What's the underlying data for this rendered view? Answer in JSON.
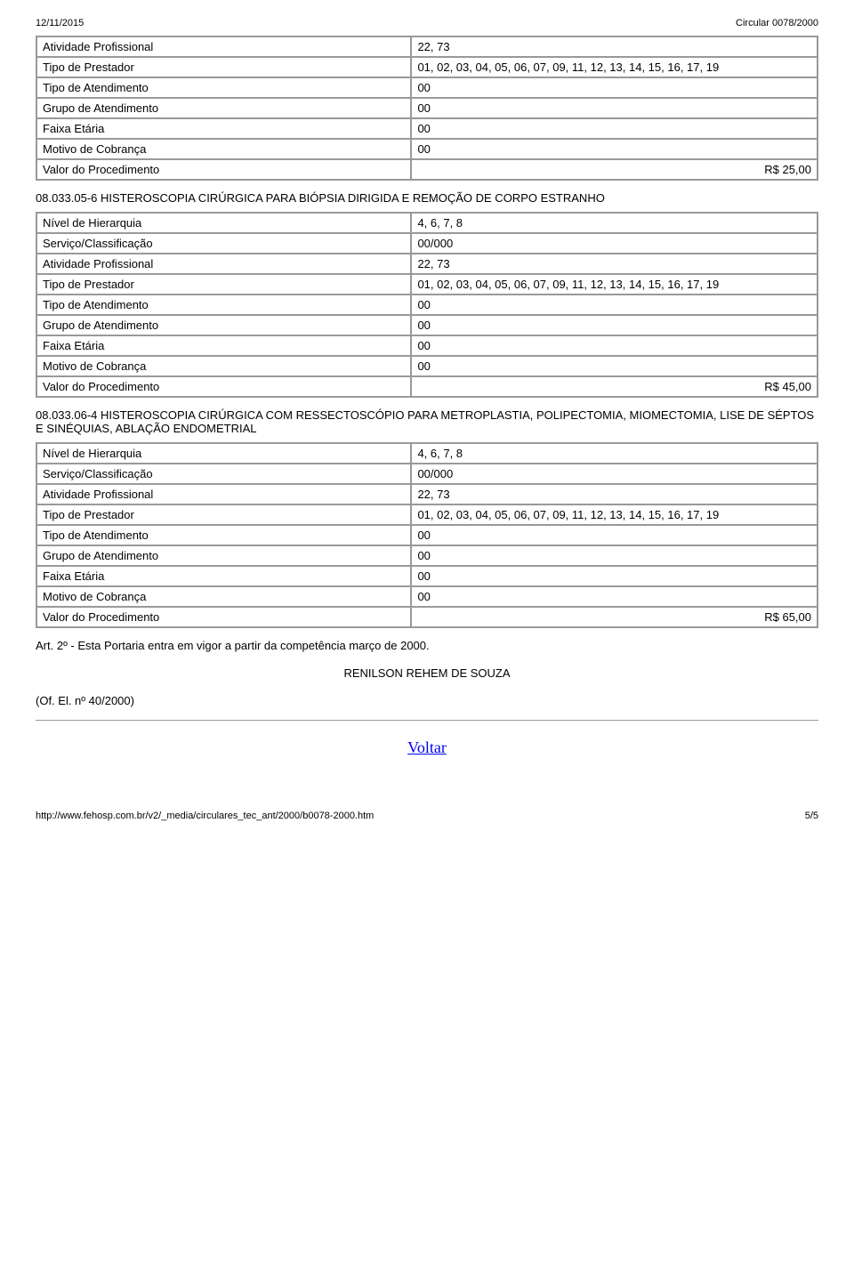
{
  "header": {
    "date": "12/11/2015",
    "title": "Circular 0078/2000"
  },
  "tables": [
    {
      "rows": [
        {
          "label": "Atividade Profissional",
          "value": "22, 73",
          "right": false
        },
        {
          "label": "Tipo de Prestador",
          "value": "01, 02, 03, 04, 05, 06, 07, 09, 11, 12, 13, 14, 15, 16, 17, 19",
          "right": false
        },
        {
          "label": "Tipo de Atendimento",
          "value": "00",
          "right": false
        },
        {
          "label": "Grupo de Atendimento",
          "value": "00",
          "right": false
        },
        {
          "label": "Faixa Etária",
          "value": "00",
          "right": false
        },
        {
          "label": "Motivo de Cobrança",
          "value": "00",
          "right": false
        },
        {
          "label": "Valor do Procedimento",
          "value": "R$ 25,00",
          "right": true
        }
      ]
    },
    {
      "title": "08.033.05-6 HISTEROSCOPIA CIRÚRGICA PARA BIÓPSIA DIRIGIDA E REMOÇÃO DE CORPO ESTRANHO",
      "rows": [
        {
          "label": "Nível de Hierarquia",
          "value": "4, 6, 7, 8",
          "right": false
        },
        {
          "label": "Serviço/Classificação",
          "value": "00/000",
          "right": false
        },
        {
          "label": "Atividade Profissional",
          "value": "22, 73",
          "right": false
        },
        {
          "label": "Tipo de Prestador",
          "value": "01, 02, 03, 04, 05, 06, 07, 09, 11, 12, 13, 14, 15, 16, 17, 19",
          "right": false
        },
        {
          "label": "Tipo de Atendimento",
          "value": "00",
          "right": false
        },
        {
          "label": "Grupo de Atendimento",
          "value": "00",
          "right": false
        },
        {
          "label": "Faixa Etária",
          "value": "00",
          "right": false
        },
        {
          "label": "Motivo de Cobrança",
          "value": "00",
          "right": false
        },
        {
          "label": "Valor do Procedimento",
          "value": "R$ 45,00",
          "right": true
        }
      ]
    },
    {
      "title": "08.033.06-4 HISTEROSCOPIA CIRÚRGICA COM RESSECTOSCÓPIO PARA METROPLASTIA, POLIPECTOMIA, MIOMECTOMIA, LISE DE SÉPTOS E SINÉQUIAS, ABLAÇÃO ENDOMETRIAL",
      "rows": [
        {
          "label": "Nível de Hierarquia",
          "value": "4, 6, 7, 8",
          "right": false
        },
        {
          "label": "Serviço/Classificação",
          "value": "00/000",
          "right": false
        },
        {
          "label": "Atividade Profissional",
          "value": "22, 73",
          "right": false
        },
        {
          "label": "Tipo de Prestador",
          "value": "01, 02, 03, 04, 05, 06, 07, 09, 11, 12, 13, 14, 15, 16, 17, 19",
          "right": false
        },
        {
          "label": "Tipo de Atendimento",
          "value": "00",
          "right": false
        },
        {
          "label": "Grupo de Atendimento",
          "value": "00",
          "right": false
        },
        {
          "label": "Faixa Etária",
          "value": "00",
          "right": false
        },
        {
          "label": "Motivo de Cobrança",
          "value": "00",
          "right": false
        },
        {
          "label": "Valor do Procedimento",
          "value": "R$ 65,00",
          "right": true
        }
      ]
    }
  ],
  "closing_art": "Art. 2º - Esta Portaria entra em vigor a partir da competência março de 2000.",
  "signature": "RENILSON REHEM DE SOUZA",
  "of_el": "(Of. El. nº 40/2000)",
  "voltar_label": "Voltar",
  "footer": {
    "url": "http://www.fehosp.com.br/v2/_media/circulares_tec_ant/2000/b0078-2000.htm",
    "page": "5/5"
  }
}
